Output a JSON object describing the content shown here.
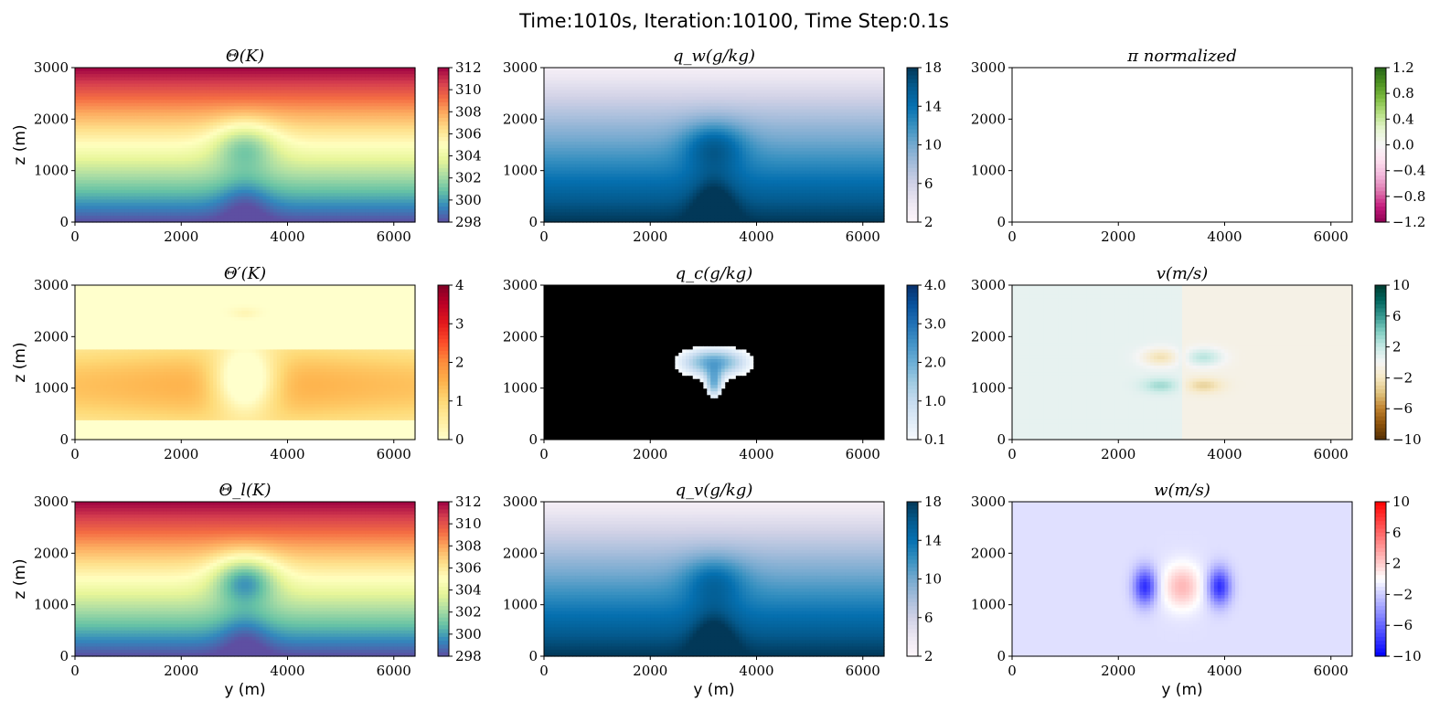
{
  "figure": {
    "suptitle": "Time:1010s, Iteration:10100, Time Step:0.1s"
  },
  "chart_data": [
    {
      "type": "heatmap",
      "title": "Θ(K)",
      "colormap": "Spectral_r",
      "field": "theta",
      "xlabel": "",
      "ylabel": "z (m)",
      "xlim": [
        0,
        6400
      ],
      "ylim": [
        0,
        3000
      ],
      "xticks": [
        "0",
        "2000",
        "4000",
        "6000"
      ],
      "yticks": [
        "0",
        "1000",
        "2000",
        "3000"
      ],
      "vmin": 298,
      "vmax": 312,
      "colorbar_ticks": [
        "298",
        "300",
        "302",
        "304",
        "306",
        "308",
        "310",
        "312"
      ]
    },
    {
      "type": "heatmap",
      "title": "q_w(g/kg)",
      "colormap": "PuBu",
      "field": "qw",
      "xlabel": "",
      "ylabel": "",
      "xlim": [
        0,
        6400
      ],
      "ylim": [
        0,
        3000
      ],
      "xticks": [
        "0",
        "2000",
        "4000",
        "6000"
      ],
      "yticks": [
        "0",
        "1000",
        "2000",
        "3000"
      ],
      "vmin": 2,
      "vmax": 18,
      "colorbar_ticks": [
        "2",
        "6",
        "10",
        "14",
        "18"
      ]
    },
    {
      "type": "heatmap",
      "title": "π normalized",
      "colormap": "PiYG",
      "field": "pi",
      "xlabel": "",
      "ylabel": "",
      "xlim": [
        0,
        6400
      ],
      "ylim": [
        0,
        3000
      ],
      "xticks": [
        "0",
        "2000",
        "4000",
        "6000"
      ],
      "yticks": [
        "0",
        "1000",
        "2000",
        "3000"
      ],
      "vmin": -1.2,
      "vmax": 1.2,
      "colorbar_ticks": [
        "−1.2",
        "−0.8",
        "−0.4",
        "0.0",
        "0.4",
        "0.8",
        "1.2"
      ]
    },
    {
      "type": "heatmap",
      "title": "Θ′(K)",
      "colormap": "YlOrRd",
      "field": "thetap",
      "xlabel": "",
      "ylabel": "z (m)",
      "xlim": [
        0,
        6400
      ],
      "ylim": [
        0,
        3000
      ],
      "xticks": [
        "0",
        "2000",
        "4000",
        "6000"
      ],
      "yticks": [
        "0",
        "1000",
        "2000",
        "3000"
      ],
      "vmin": 0,
      "vmax": 4,
      "colorbar_ticks": [
        "0",
        "1",
        "2",
        "3",
        "4"
      ]
    },
    {
      "type": "heatmap",
      "title": "q_c(g/kg)",
      "colormap": "Blues",
      "field": "qc",
      "xlabel": "",
      "ylabel": "",
      "xlim": [
        0,
        6400
      ],
      "ylim": [
        0,
        3000
      ],
      "xticks": [
        "0",
        "2000",
        "4000",
        "6000"
      ],
      "yticks": [
        "0",
        "1000",
        "2000",
        "3000"
      ],
      "vmin": 0.1,
      "vmax": 4.0,
      "colorbar_ticks": [
        "0.1",
        "1.0",
        "2.0",
        "3.0",
        "4.0"
      ]
    },
    {
      "type": "heatmap",
      "title": "v(m/s)",
      "colormap": "BrBG",
      "field": "v",
      "xlabel": "",
      "ylabel": "",
      "xlim": [
        0,
        6400
      ],
      "ylim": [
        0,
        3000
      ],
      "xticks": [
        "0",
        "2000",
        "4000",
        "6000"
      ],
      "yticks": [
        "0",
        "1000",
        "2000",
        "3000"
      ],
      "vmin": -10,
      "vmax": 10,
      "colorbar_ticks": [
        "−10",
        "−6",
        "−2",
        "2",
        "6",
        "10"
      ]
    },
    {
      "type": "heatmap",
      "title": "Θ_l(K)",
      "colormap": "Spectral_r",
      "field": "thetal",
      "xlabel": "y (m)",
      "ylabel": "z (m)",
      "xlim": [
        0,
        6400
      ],
      "ylim": [
        0,
        3000
      ],
      "xticks": [
        "0",
        "2000",
        "4000",
        "6000"
      ],
      "yticks": [
        "0",
        "1000",
        "2000",
        "3000"
      ],
      "vmin": 298,
      "vmax": 312,
      "colorbar_ticks": [
        "298",
        "300",
        "302",
        "304",
        "306",
        "308",
        "310",
        "312"
      ]
    },
    {
      "type": "heatmap",
      "title": "q_v(g/kg)",
      "colormap": "PuBu",
      "field": "qv",
      "xlabel": "y (m)",
      "ylabel": "",
      "xlim": [
        0,
        6400
      ],
      "ylim": [
        0,
        3000
      ],
      "xticks": [
        "0",
        "2000",
        "4000",
        "6000"
      ],
      "yticks": [
        "0",
        "1000",
        "2000",
        "3000"
      ],
      "vmin": 2,
      "vmax": 18,
      "colorbar_ticks": [
        "2",
        "6",
        "10",
        "14",
        "18"
      ]
    },
    {
      "type": "heatmap",
      "title": "w(m/s)",
      "colormap": "bwr",
      "field": "w",
      "xlabel": "y (m)",
      "ylabel": "",
      "xlim": [
        0,
        6400
      ],
      "ylim": [
        0,
        3000
      ],
      "xticks": [
        "0",
        "2000",
        "4000",
        "6000"
      ],
      "yticks": [
        "0",
        "1000",
        "2000",
        "3000"
      ],
      "vmin": -10,
      "vmax": 10,
      "colorbar_ticks": [
        "−10",
        "−6",
        "−2",
        "2",
        "6",
        "10"
      ]
    }
  ]
}
